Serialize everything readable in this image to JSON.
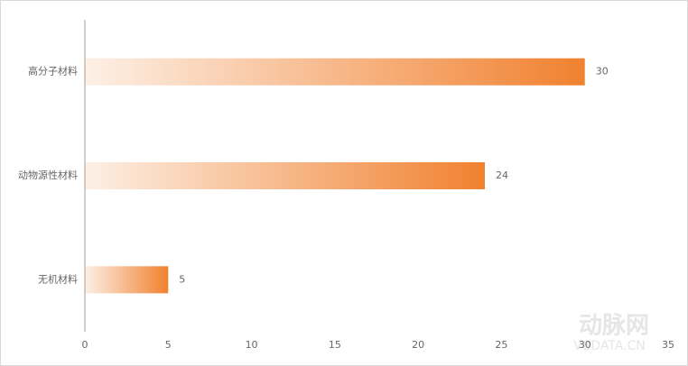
{
  "chart_data": {
    "type": "hbar",
    "categories": [
      "高分子材料",
      "动物源性材料",
      "无机材料"
    ],
    "values": [
      30,
      24,
      5
    ],
    "color": "#f0812f",
    "xlim": [
      0,
      35
    ],
    "xticks": [
      0,
      5,
      10,
      15,
      20,
      25,
      30,
      35
    ],
    "watermark": "动脉网",
    "watermark_sub": "VBDATA.CN"
  }
}
